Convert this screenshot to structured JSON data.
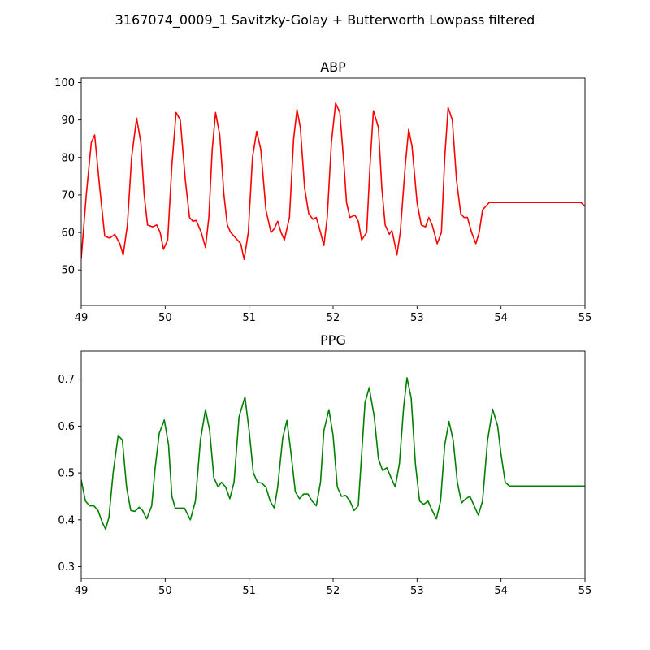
{
  "figure": {
    "suptitle": "3167074_0009_1 Savitzky-Golay + Butterworth Lowpass filtered"
  },
  "chart_data": [
    {
      "type": "line",
      "title": "ABP",
      "xlabel": "",
      "ylabel": "",
      "xlim": [
        49,
        55
      ],
      "ylim": [
        40.5,
        101.2
      ],
      "xticks": [
        49,
        50,
        51,
        52,
        53,
        54,
        55
      ],
      "yticks": [
        50,
        60,
        70,
        80,
        90,
        100
      ],
      "grid": false,
      "series": [
        {
          "color": "#ff0000",
          "x": [
            49.0,
            49.06,
            49.12,
            49.16,
            49.22,
            49.28,
            49.34,
            49.4,
            49.46,
            49.5,
            49.55,
            49.6,
            49.66,
            49.71,
            49.75,
            49.79,
            49.85,
            49.9,
            49.94,
            49.98,
            50.03,
            50.08,
            50.13,
            50.18,
            50.24,
            50.29,
            50.33,
            50.37,
            50.43,
            50.48,
            50.52,
            50.56,
            50.6,
            50.65,
            50.7,
            50.74,
            50.78,
            50.84,
            50.9,
            50.94,
            50.99,
            51.04,
            51.09,
            51.14,
            51.2,
            51.26,
            51.3,
            51.34,
            51.38,
            51.42,
            51.48,
            51.53,
            51.57,
            51.61,
            51.66,
            51.71,
            51.76,
            51.8,
            51.85,
            51.89,
            51.93,
            51.98,
            52.03,
            52.08,
            52.13,
            52.16,
            52.2,
            52.26,
            52.3,
            52.34,
            52.4,
            52.44,
            52.48,
            52.54,
            52.58,
            52.62,
            52.67,
            52.7,
            52.72,
            52.76,
            52.8,
            52.86,
            52.9,
            52.94,
            53.0,
            53.05,
            53.1,
            53.14,
            53.18,
            53.24,
            53.29,
            53.33,
            53.37,
            53.42,
            53.47,
            53.52,
            53.56,
            53.6,
            53.65,
            53.7,
            53.74,
            53.78,
            53.82,
            53.86,
            53.9,
            53.94,
            53.98,
            54.02,
            54.06,
            54.1,
            54.14,
            54.18,
            54.22,
            54.26,
            54.3,
            54.34,
            54.38,
            54.42,
            54.47,
            54.52,
            54.56,
            54.6,
            54.64,
            54.68,
            54.72,
            54.76,
            54.8,
            54.85,
            54.9,
            54.95,
            55.0
          ],
          "y": [
            53.0,
            70.0,
            84.0,
            86.0,
            72.0,
            59.0,
            58.5,
            59.5,
            57.0,
            54.0,
            62.0,
            80.0,
            90.5,
            84.0,
            70.0,
            62.0,
            61.5,
            62.0,
            60.0,
            55.5,
            58.0,
            78.0,
            92.0,
            90.0,
            74.0,
            64.0,
            63.0,
            63.2,
            60.0,
            56.0,
            64.0,
            82.0,
            92.0,
            86.0,
            70.0,
            62.0,
            60.0,
            58.5,
            57.0,
            52.8,
            60.0,
            80.0,
            87.0,
            82.0,
            66.0,
            60.0,
            61.0,
            63.0,
            60.0,
            58.0,
            64.0,
            85.0,
            92.8,
            88.0,
            72.0,
            65.0,
            63.5,
            64.0,
            60.0,
            56.5,
            64.0,
            84.0,
            94.5,
            92.0,
            78.0,
            68.0,
            64.0,
            64.6,
            63.0,
            58.0,
            60.0,
            78.0,
            92.5,
            88.0,
            72.0,
            62.0,
            59.5,
            60.5,
            58.5,
            54.0,
            60.0,
            78.0,
            87.5,
            83.0,
            68.0,
            62.0,
            61.5,
            64.0,
            62.0,
            57.0,
            60.0,
            80.0,
            93.3,
            90.0,
            74.0,
            65.0,
            64.0,
            64.0,
            60.0,
            57.0,
            60.0,
            66.0,
            67.0,
            68.0,
            68.0,
            68.0,
            68.0,
            68.0,
            68.0,
            68.0,
            68.0,
            68.0,
            68.0,
            68.0,
            68.0,
            68.0,
            68.0,
            68.0,
            68.0,
            68.0,
            68.0,
            68.0,
            68.0,
            68.0,
            68.0,
            68.0,
            68.0,
            68.0,
            68.0,
            68.0,
            67.0
          ]
        }
      ]
    },
    {
      "type": "line",
      "title": "PPG",
      "xlabel": "",
      "ylabel": "",
      "xlim": [
        49,
        55
      ],
      "ylim": [
        0.275,
        0.76
      ],
      "xticks": [
        49,
        50,
        51,
        52,
        53,
        54,
        55
      ],
      "yticks": [
        0.3,
        0.4,
        0.5,
        0.6,
        0.7
      ],
      "grid": false,
      "series": [
        {
          "color": "#008000",
          "x": [
            49.0,
            49.05,
            49.1,
            49.15,
            49.2,
            49.25,
            49.29,
            49.33,
            49.38,
            49.44,
            49.49,
            49.54,
            49.59,
            49.64,
            49.69,
            49.73,
            49.78,
            49.84,
            49.88,
            49.93,
            49.99,
            50.04,
            50.08,
            50.12,
            50.17,
            50.23,
            50.3,
            50.36,
            50.42,
            50.48,
            50.53,
            50.58,
            50.63,
            50.67,
            50.72,
            50.77,
            50.82,
            50.88,
            50.95,
            51.0,
            51.05,
            51.1,
            51.15,
            51.2,
            51.25,
            51.3,
            51.34,
            51.4,
            51.45,
            51.5,
            51.55,
            51.6,
            51.65,
            51.7,
            51.75,
            51.8,
            51.85,
            51.89,
            51.95,
            52.0,
            52.05,
            52.1,
            52.15,
            52.2,
            52.25,
            52.3,
            52.34,
            52.38,
            52.43,
            52.49,
            52.54,
            52.59,
            52.64,
            52.69,
            52.74,
            52.79,
            52.84,
            52.88,
            52.93,
            52.98,
            53.03,
            53.08,
            53.13,
            53.18,
            53.23,
            53.28,
            53.33,
            53.38,
            53.43,
            53.48,
            53.53,
            53.58,
            53.63,
            53.68,
            53.73,
            53.78,
            53.84,
            53.9,
            53.96,
            54.0,
            54.05,
            54.1,
            54.15,
            54.2,
            54.25,
            54.3,
            54.34,
            54.39,
            54.44,
            54.49,
            54.53,
            54.58,
            54.63,
            54.68,
            54.73,
            54.78,
            54.82,
            54.88,
            54.93,
            54.97,
            55.0
          ],
          "y": [
            0.485,
            0.44,
            0.43,
            0.43,
            0.42,
            0.395,
            0.38,
            0.405,
            0.5,
            0.58,
            0.57,
            0.47,
            0.42,
            0.418,
            0.427,
            0.42,
            0.402,
            0.43,
            0.51,
            0.585,
            0.613,
            0.56,
            0.45,
            0.425,
            0.425,
            0.425,
            0.4,
            0.44,
            0.57,
            0.635,
            0.59,
            0.49,
            0.47,
            0.48,
            0.47,
            0.445,
            0.48,
            0.62,
            0.662,
            0.59,
            0.5,
            0.48,
            0.478,
            0.47,
            0.44,
            0.425,
            0.47,
            0.575,
            0.612,
            0.54,
            0.46,
            0.445,
            0.455,
            0.455,
            0.44,
            0.43,
            0.48,
            0.59,
            0.635,
            0.58,
            0.47,
            0.45,
            0.452,
            0.44,
            0.42,
            0.43,
            0.54,
            0.65,
            0.682,
            0.62,
            0.53,
            0.505,
            0.511,
            0.49,
            0.47,
            0.52,
            0.64,
            0.703,
            0.66,
            0.52,
            0.44,
            0.433,
            0.44,
            0.42,
            0.402,
            0.44,
            0.56,
            0.61,
            0.57,
            0.48,
            0.436,
            0.445,
            0.45,
            0.43,
            0.41,
            0.44,
            0.57,
            0.636,
            0.6,
            0.54,
            0.48,
            0.472,
            0.472,
            0.472,
            0.472,
            0.472,
            0.472,
            0.472,
            0.472,
            0.472,
            0.472,
            0.472,
            0.472,
            0.472,
            0.472,
            0.472,
            0.472,
            0.472,
            0.472,
            0.472,
            0.472
          ]
        }
      ]
    }
  ]
}
